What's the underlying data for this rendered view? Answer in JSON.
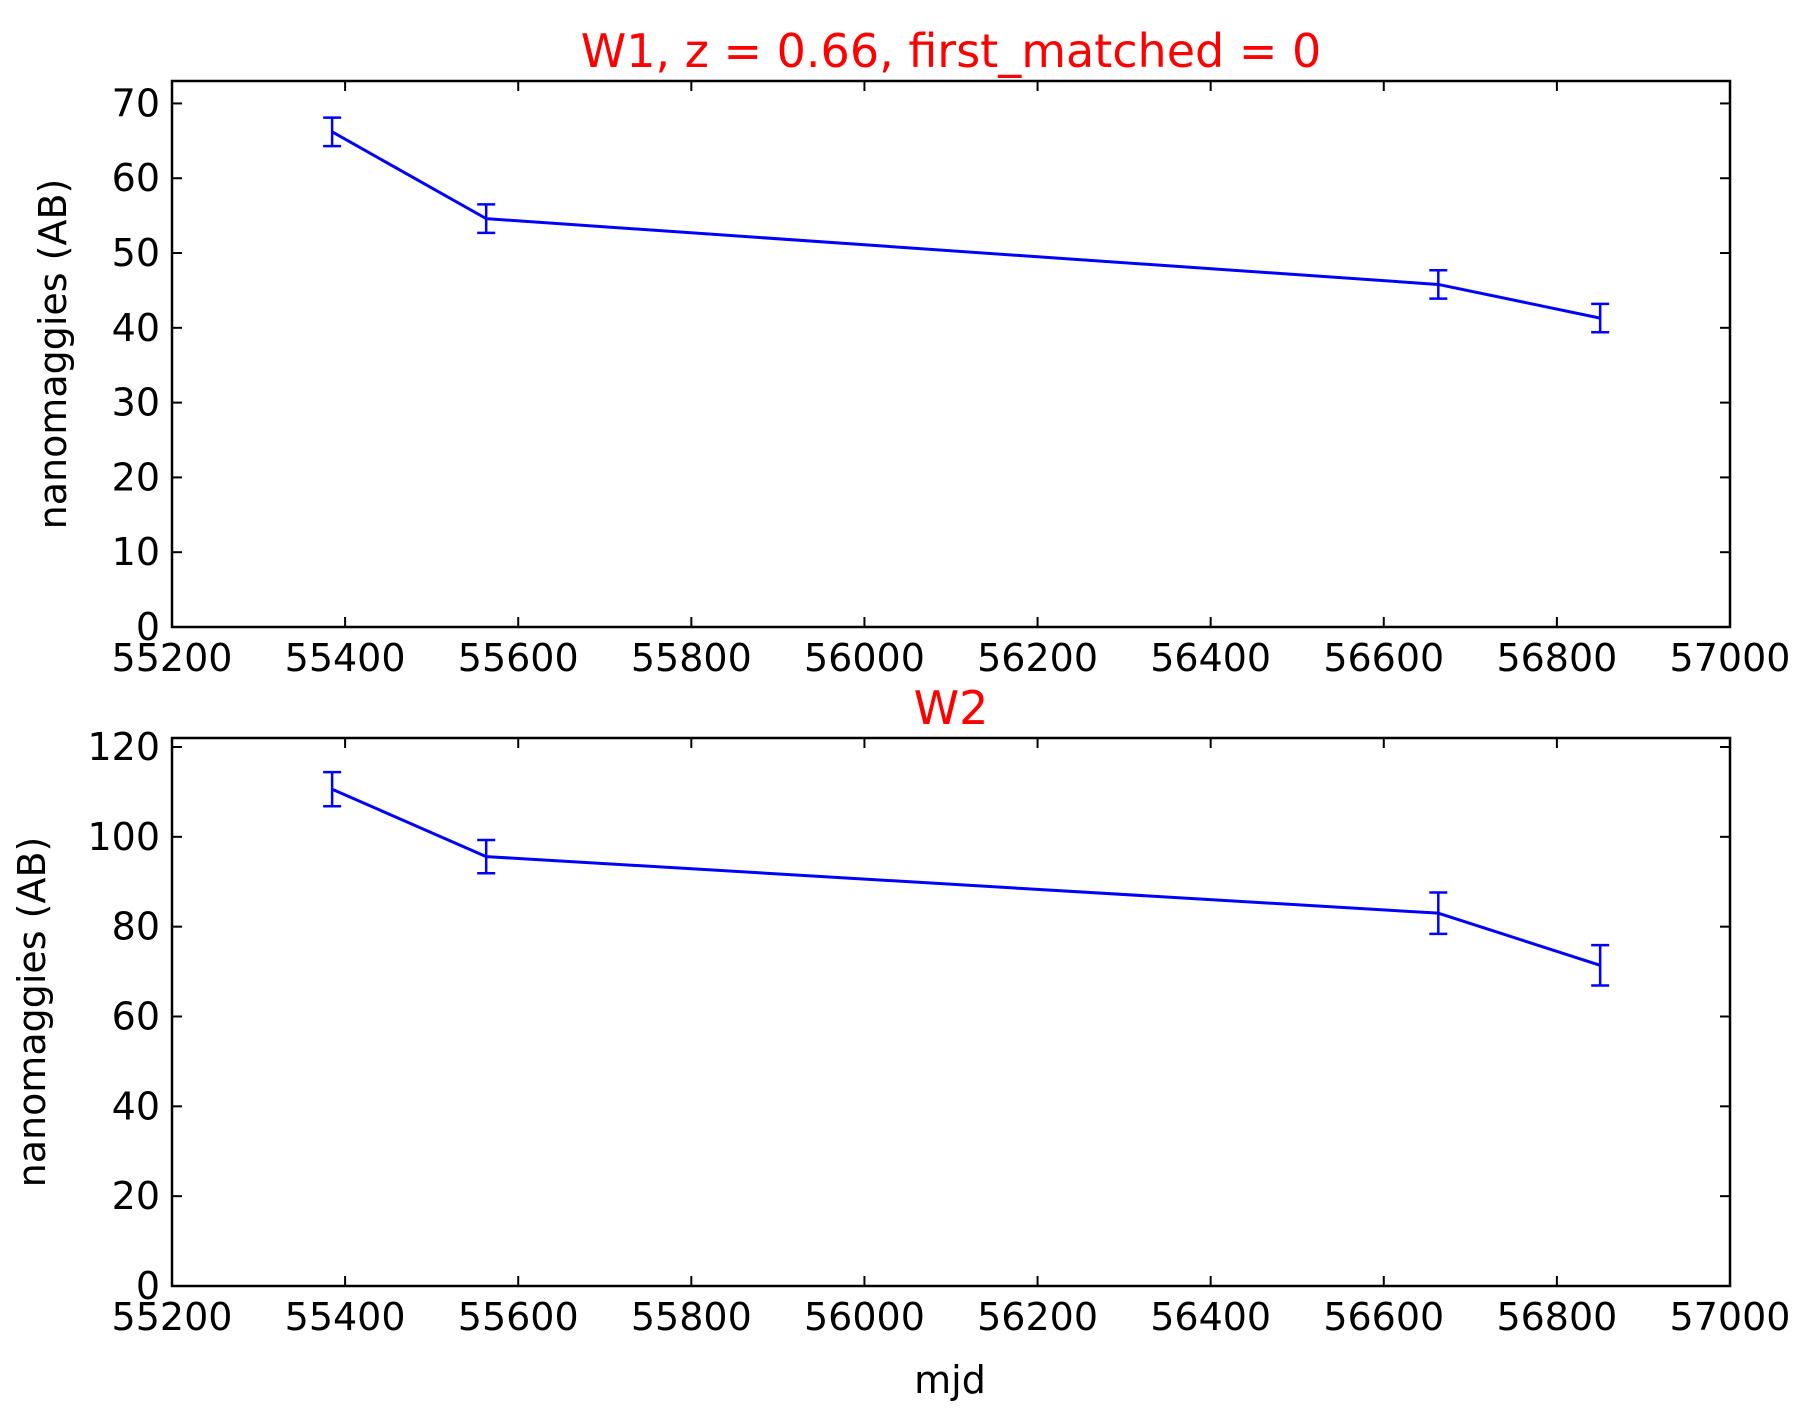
{
  "colors": {
    "title": "#ff0000",
    "series": "#0000ff",
    "axes": "#000000",
    "background": "#ffffff"
  },
  "chart_data": [
    {
      "type": "line",
      "title": "W1, z = 0.66, first_matched = 0",
      "xlabel": "",
      "ylabel": "nanomaggies (AB)",
      "xlim": [
        55200,
        57000
      ],
      "ylim": [
        0,
        73
      ],
      "xticks": [
        55200,
        55400,
        55600,
        55800,
        56000,
        56200,
        56400,
        56600,
        56800,
        57000
      ],
      "yticks": [
        0,
        10,
        20,
        30,
        40,
        50,
        60,
        70
      ],
      "grid": false,
      "series": [
        {
          "x": [
            55385,
            55563,
            56663,
            56850
          ],
          "y": [
            66.2,
            54.6,
            45.8,
            41.3
          ],
          "yerr": [
            1.9,
            1.9,
            1.9,
            1.9
          ]
        }
      ]
    },
    {
      "type": "line",
      "title": "W2",
      "xlabel": "mjd",
      "ylabel": "nanomaggies (AB)",
      "xlim": [
        55200,
        57000
      ],
      "ylim": [
        0,
        122
      ],
      "xticks": [
        55200,
        55400,
        55600,
        55800,
        56000,
        56200,
        56400,
        56600,
        56800,
        57000
      ],
      "yticks": [
        0,
        20,
        40,
        60,
        80,
        100,
        120
      ],
      "grid": false,
      "series": [
        {
          "x": [
            55385,
            55563,
            56663,
            56850
          ],
          "y": [
            110.6,
            95.6,
            83.0,
            71.4
          ],
          "yerr": [
            3.8,
            3.7,
            4.6,
            4.5
          ]
        }
      ]
    }
  ]
}
